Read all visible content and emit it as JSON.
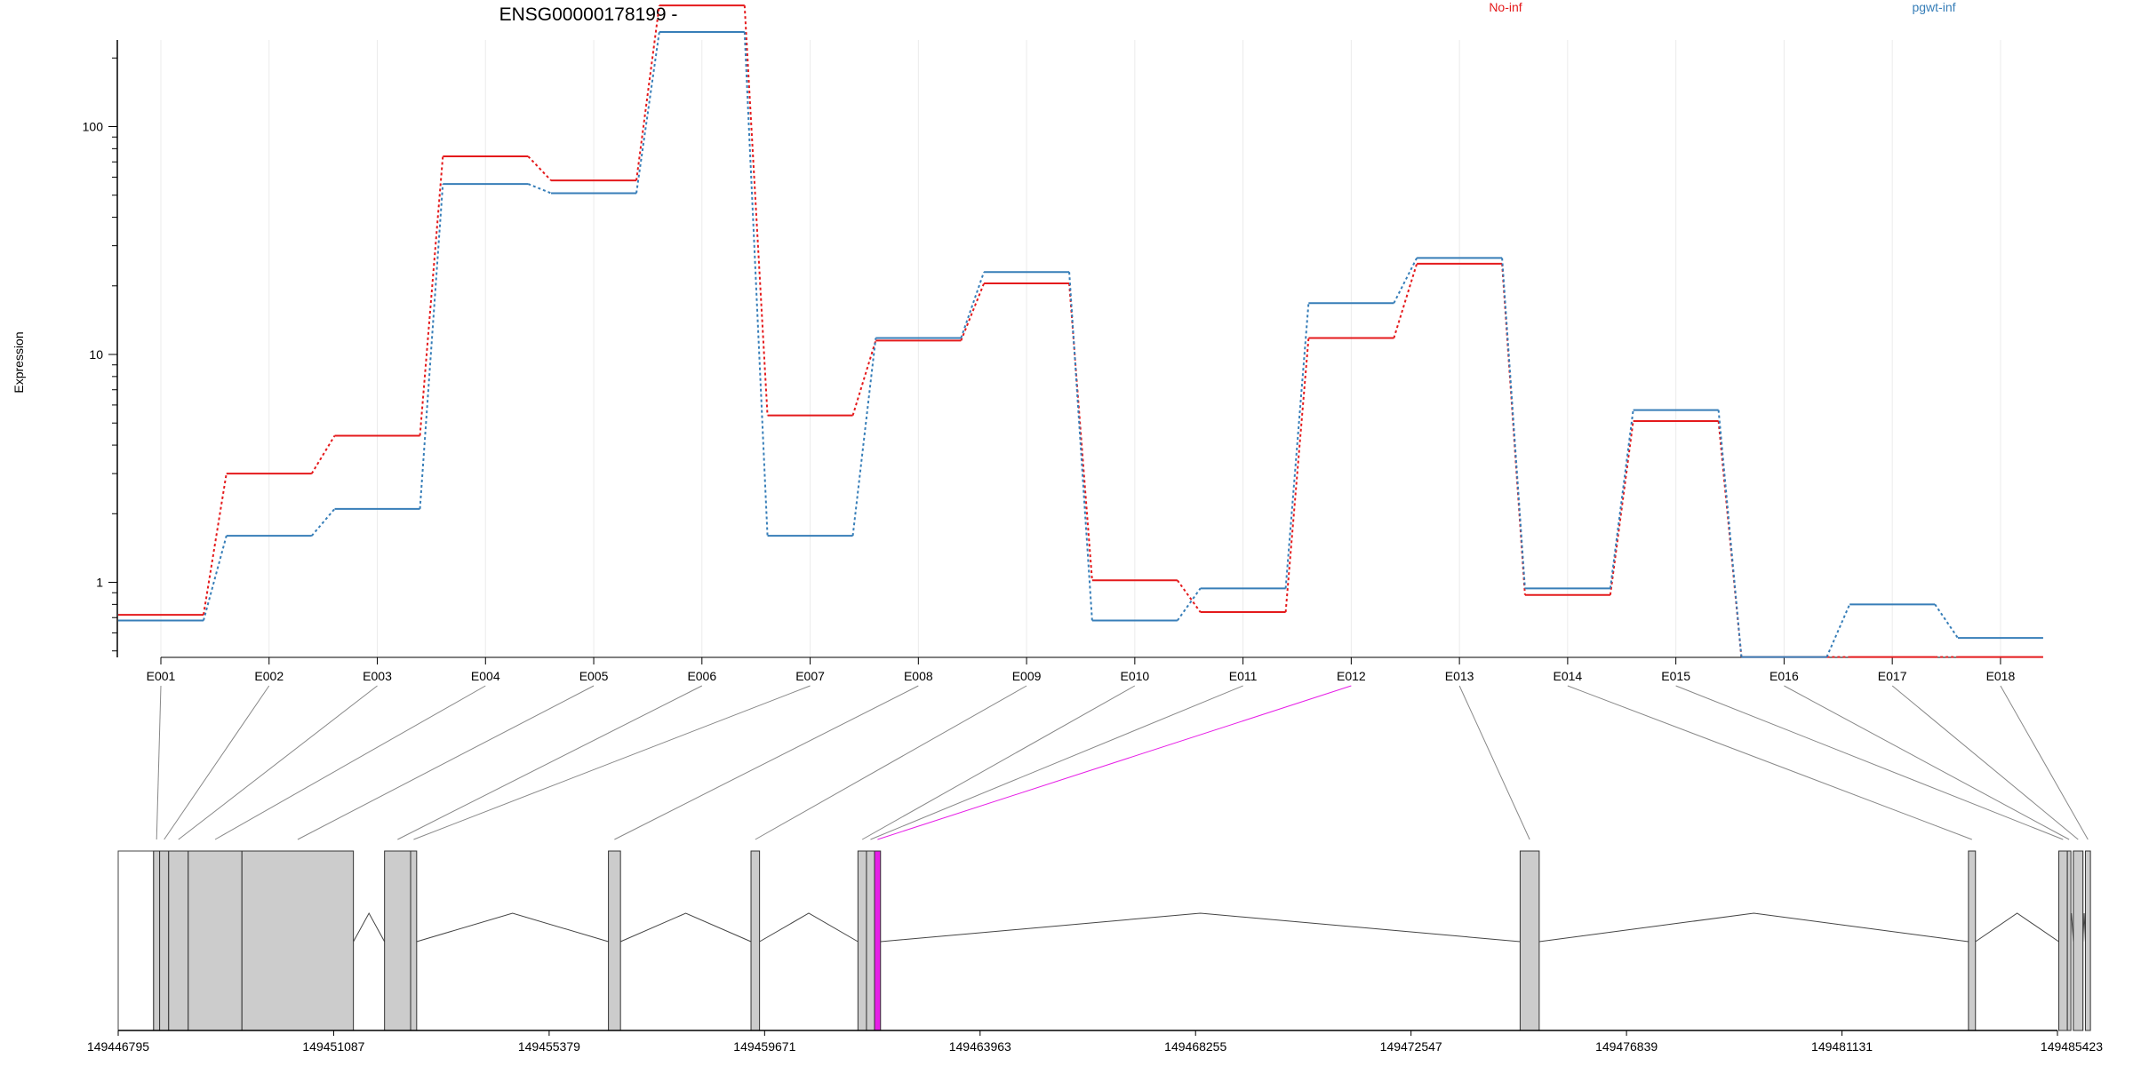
{
  "chart_data": {
    "type": "line",
    "title": "ENSG00000178199 -",
    "ylabel": "Expression",
    "y_scale": "log",
    "y_ticks": [
      "1",
      "10",
      "100"
    ],
    "grid": true,
    "legend_placement": "top-right",
    "categories": [
      "E001",
      "E002",
      "E003",
      "E004",
      "E005",
      "E006",
      "E007",
      "E008",
      "E009",
      "E010",
      "E011",
      "E012",
      "E013",
      "E014",
      "E015",
      "E016",
      "E017",
      "E018"
    ],
    "series": [
      {
        "name": "No-inf",
        "color": "#e41a1c",
        "values": [
          0.72,
          3.0,
          4.4,
          74,
          58,
          340,
          5.4,
          11.5,
          20.5,
          1.02,
          0.74,
          11.8,
          25,
          0.88,
          5.1,
          0.47,
          0.47,
          0.47
        ]
      },
      {
        "name": "pgwt-inf",
        "color": "#377eb8",
        "values": [
          0.68,
          1.6,
          2.1,
          56,
          51,
          260,
          1.6,
          11.8,
          23,
          0.68,
          0.94,
          16.8,
          26.5,
          0.94,
          5.7,
          0.47,
          0.8,
          0.57
        ]
      }
    ],
    "genomic_axis": {
      "ticks": [
        "149446795",
        "149451087",
        "149455379",
        "149459671",
        "149463963",
        "149468255",
        "149472547",
        "149476839",
        "149481131",
        "149485423"
      ],
      "start": 149446795,
      "end": 149485423,
      "exons": [
        {
          "id": "E001",
          "start": 149447500,
          "end": 149447620
        },
        {
          "id": "E002",
          "start": 149447620,
          "end": 149447800
        },
        {
          "id": "E003",
          "start": 149447800,
          "end": 149448190
        },
        {
          "id": "E004",
          "start": 149448190,
          "end": 149449260
        },
        {
          "id": "E005",
          "start": 149449260,
          "end": 149451480
        },
        {
          "id": "E006",
          "start": 149452100,
          "end": 149452620
        },
        {
          "id": "E007",
          "start": 149452620,
          "end": 149452740
        },
        {
          "id": "E008",
          "start": 149456560,
          "end": 149456800
        },
        {
          "id": "E009",
          "start": 149459400,
          "end": 149459570
        },
        {
          "id": "E010",
          "start": 149461530,
          "end": 149461700
        },
        {
          "id": "E011",
          "start": 149461700,
          "end": 149461860
        },
        {
          "id": "E012",
          "start": 149461860,
          "end": 149461980,
          "highlight": true
        },
        {
          "id": "E013",
          "start": 149474720,
          "end": 149475100
        },
        {
          "id": "E014",
          "start": 149483650,
          "end": 149483790
        },
        {
          "id": "E015",
          "start": 149485450,
          "end": 149485620
        },
        {
          "id": "E016",
          "start": 149485620,
          "end": 149485660
        },
        {
          "id": "E017",
          "start": 149485740,
          "end": 149485930
        },
        {
          "id": "E018",
          "start": 149485980,
          "end": 149486080
        }
      ],
      "utr_boxes": [
        {
          "start": 149446795,
          "end": 149447500
        },
        {
          "start": 149485740,
          "end": 149485930
        }
      ],
      "introns": [
        [
          149451480,
          149452100
        ],
        [
          149452740,
          149456560
        ],
        [
          149456800,
          149459400
        ],
        [
          149459570,
          149461530
        ],
        [
          149461980,
          149474720
        ],
        [
          149475100,
          149483650
        ],
        [
          149483790,
          149485450
        ],
        [
          149485660,
          149485740
        ],
        [
          149485930,
          149485980
        ]
      ]
    },
    "highlight_color": "#e61ee6"
  }
}
